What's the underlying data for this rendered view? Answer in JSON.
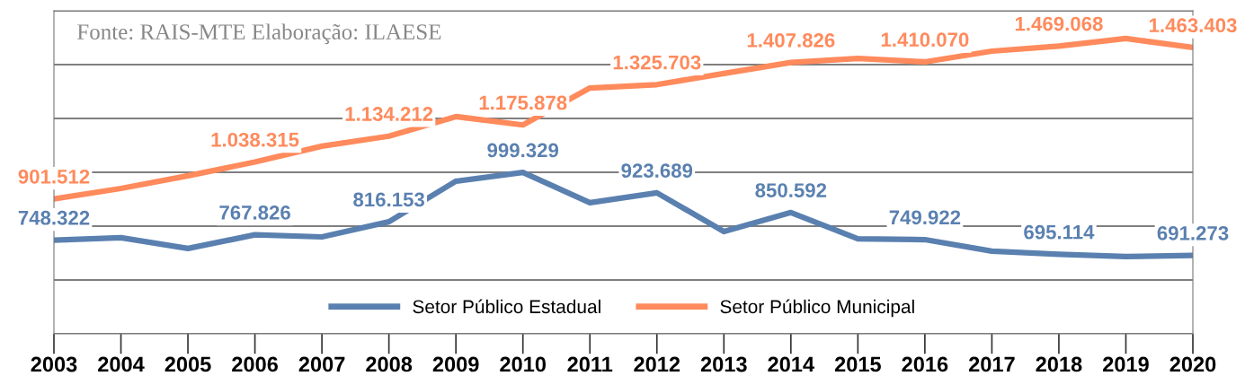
{
  "chart_data": {
    "type": "line",
    "categories": [
      "2003",
      "2004",
      "2005",
      "2006",
      "2007",
      "2008",
      "2009",
      "2010",
      "2011",
      "2012",
      "2013",
      "2014",
      "2015",
      "2016",
      "2017",
      "2018",
      "2019",
      "2020"
    ],
    "series": [
      {
        "name": "Setor Público Estadual",
        "color": "#5a80b0",
        "values": [
          748322,
          757000,
          717000,
          767826,
          760000,
          816153,
          967000,
          999329,
          887000,
          923689,
          780000,
          850592,
          753000,
          749922,
          707000,
          695114,
          687000,
          691273
        ],
        "value_labels": [
          "748.322",
          null,
          null,
          "767.826",
          null,
          "816.153",
          null,
          "999.329",
          null,
          "923.689",
          null,
          "850.592",
          null,
          "749.922",
          null,
          "695.114",
          null,
          "691.273"
        ]
      },
      {
        "name": "Setor Público Municipal",
        "color": "#ff8a5c",
        "values": [
          901512,
          940000,
          987000,
          1038315,
          1097000,
          1134212,
          1207000,
          1175878,
          1313000,
          1325703,
          1367000,
          1407826,
          1423000,
          1410070,
          1450000,
          1469068,
          1497000,
          1463403
        ],
        "value_labels": [
          "901.512",
          null,
          null,
          "1.038.315",
          null,
          "1.134.212",
          null,
          "1.175.878",
          null,
          "1.325.703",
          null,
          "1.407.826",
          null,
          "1.410.070",
          null,
          "1.469.068",
          null,
          "1.463.403"
        ]
      }
    ],
    "ylim": [
      400000,
      1600000
    ],
    "yticks": [
      {
        "value": 400000,
        "label": null
      },
      {
        "value": 600000,
        "label": null
      },
      {
        "value": 800000,
        "label": null
      },
      {
        "value": 1000000,
        "label": null
      },
      {
        "value": 1200000,
        "label": null
      },
      {
        "value": 1400000,
        "label": null
      },
      {
        "value": 1600000,
        "label": null
      }
    ],
    "grid": "y",
    "legend": "bottom",
    "marker": "none",
    "line_style": "solid",
    "annotations": [
      "Fonte: RAIS-MTE Elaboração: ILAESE"
    ]
  }
}
